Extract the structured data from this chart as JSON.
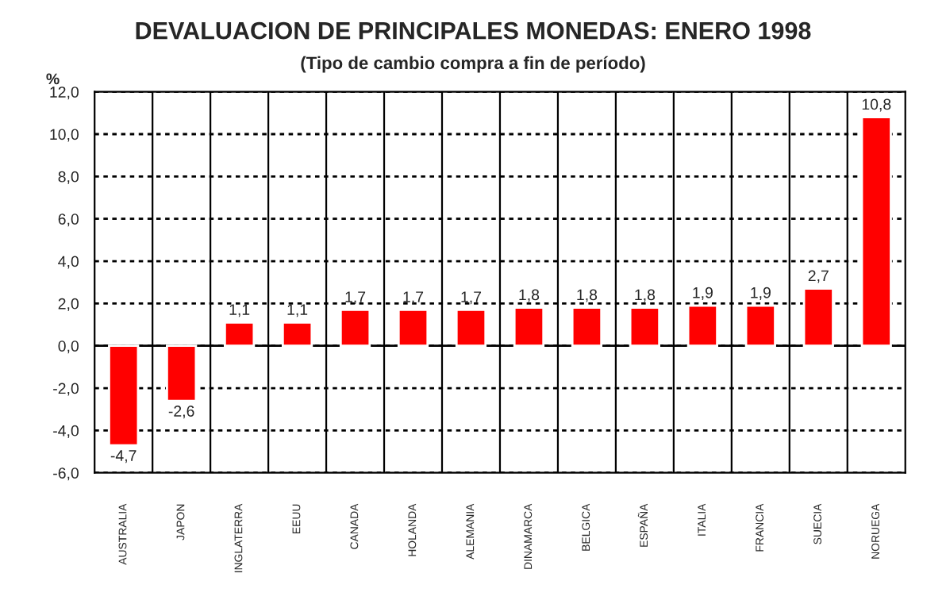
{
  "chart_data": {
    "type": "bar",
    "title": "DEVALUACION DE PRINCIPALES MONEDAS: ENERO 1998",
    "subtitle": "(Tipo de cambio compra a fin de período)",
    "ylabel": "%",
    "categories": [
      "AUSTRALIA",
      "JAPON",
      "INGLATERRA",
      "EEUU",
      "CANADA",
      "HOLANDA",
      "ALEMANIA",
      "DINAMARCA",
      "BELGICA",
      "ESPAÑA",
      "ITALIA",
      "FRANCIA",
      "SUECIA",
      "NORUEGA"
    ],
    "values": [
      -4.7,
      -2.6,
      1.1,
      1.1,
      1.7,
      1.7,
      1.7,
      1.8,
      1.8,
      1.8,
      1.9,
      1.9,
      2.7,
      10.8
    ],
    "value_labels": [
      "-4,7",
      "-2,6",
      "1,1",
      "1,1",
      "1,7",
      "1,7",
      "1,7",
      "1,8",
      "1,8",
      "1,8",
      "1,9",
      "1,9",
      "2,7",
      "10,8"
    ],
    "color": "#ff0000",
    "ylim": [
      -6,
      12
    ],
    "yticks": [
      {
        "value": -6,
        "label": "-6,0"
      },
      {
        "value": -4,
        "label": "-4,0"
      },
      {
        "value": -2,
        "label": "-2,0"
      },
      {
        "value": 0,
        "label": "0,0"
      },
      {
        "value": 2,
        "label": "2,0"
      },
      {
        "value": 4,
        "label": "4,0"
      },
      {
        "value": 6,
        "label": "6,0"
      },
      {
        "value": 8,
        "label": "8,0"
      },
      {
        "value": 10,
        "label": "10,0"
      },
      {
        "value": 12,
        "label": "12,0"
      }
    ],
    "grid": true
  }
}
